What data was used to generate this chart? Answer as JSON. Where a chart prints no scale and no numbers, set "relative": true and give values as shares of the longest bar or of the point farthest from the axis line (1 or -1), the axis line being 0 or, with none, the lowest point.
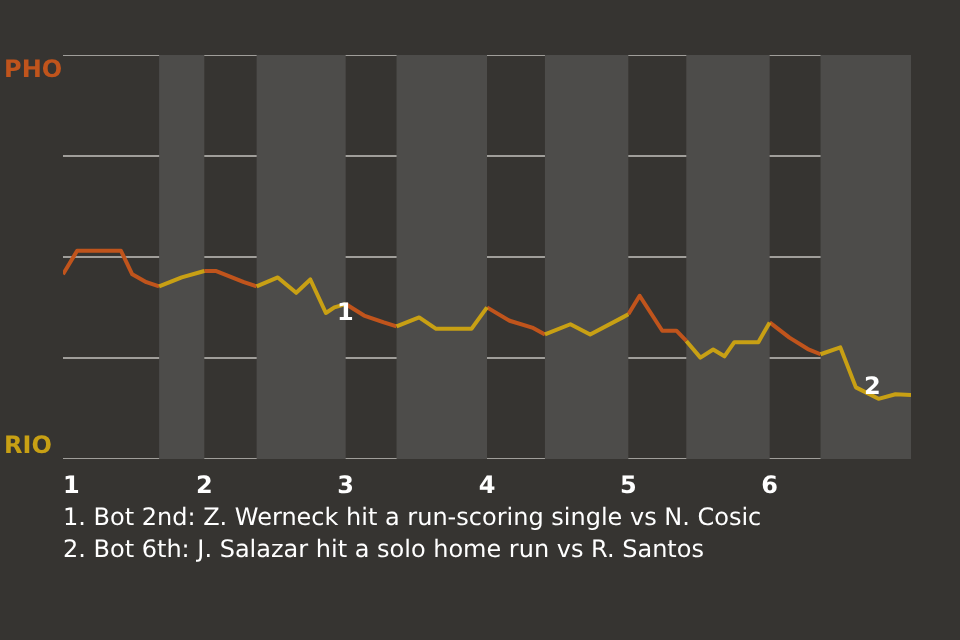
{
  "chart_data": {
    "type": "line",
    "relative": true,
    "xlim": [
      1,
      7
    ],
    "xticks": [
      1,
      2,
      3,
      4,
      5,
      6
    ],
    "marker": "none",
    "line_style": "solid",
    "ref_lines": [
      {
        "axis": "y",
        "value": 0,
        "color": "#a09e9a"
      },
      {
        "axis": "y",
        "value": 0.485,
        "color": "#a09e9a"
      },
      {
        "axis": "y",
        "value": 0.97,
        "color": "#a09e9a"
      },
      {
        "axis": "y",
        "value": 1.455,
        "color": "#a09e9a"
      },
      {
        "axis": "y",
        "value": 1.94,
        "color": "#a09e9a"
      }
    ],
    "series": [
      {
        "color": "#c0541c",
        "x": [
          1,
          1.1,
          1.41,
          1.49,
          1.59,
          1.68,
          null,
          2,
          2.08,
          2.28,
          2.37,
          null,
          3,
          3.13,
          3.27,
          3.36,
          null,
          4,
          4.16,
          4.32,
          4.41,
          null,
          5,
          5.08,
          5.24,
          5.34,
          5.41,
          null,
          6,
          6.14,
          6.27,
          6.36
        ],
        "values": [
          0.887,
          1,
          1,
          0.887,
          0.849,
          0.829,
          null,
          0.903,
          0.903,
          0.849,
          0.829,
          null,
          0.744,
          0.689,
          0.656,
          0.637,
          null,
          0.728,
          0.664,
          0.631,
          0.598,
          null,
          0.695,
          0.784,
          0.616,
          0.616,
          0.567,
          null,
          0.656,
          0.583,
          0.528,
          0.503
        ]
      },
      {
        "color": "#c8a014",
        "x": [
          1.68,
          1.84,
          2,
          null,
          2.37,
          2.52,
          2.65,
          2.75,
          2.86,
          2.92,
          3,
          null,
          3.36,
          3.52,
          3.64,
          3.89,
          4,
          null,
          4.41,
          4.59,
          4.73,
          4.96,
          5,
          null,
          5.41,
          5.51,
          5.6,
          5.68,
          5.75,
          5.92,
          6,
          null,
          6.36,
          6.5,
          6.61,
          6.77,
          6.89,
          7
        ],
        "values": [
          0.829,
          0.872,
          0.903,
          null,
          0.829,
          0.872,
          0.798,
          0.862,
          0.701,
          0.728,
          0.744,
          null,
          0.637,
          0.68,
          0.625,
          0.625,
          0.728,
          null,
          0.598,
          0.647,
          0.598,
          0.68,
          0.695,
          null,
          0.567,
          0.487,
          0.526,
          0.493,
          0.561,
          0.561,
          0.656,
          null,
          0.503,
          0.536,
          0.344,
          0.289,
          0.311,
          0.307
        ]
      }
    ],
    "bands": [
      {
        "axis": "x",
        "from": 1.68,
        "to": 2,
        "color": "#4d4c4a"
      },
      {
        "axis": "x",
        "from": 2.37,
        "to": 3,
        "color": "#4d4c4a"
      },
      {
        "axis": "x",
        "from": 3.36,
        "to": 4,
        "color": "#4d4c4a"
      },
      {
        "axis": "x",
        "from": 4.41,
        "to": 5,
        "color": "#4d4c4a"
      },
      {
        "axis": "x",
        "from": 5.41,
        "to": 6,
        "color": "#4d4c4a"
      },
      {
        "axis": "x",
        "from": 6.36,
        "to": 7,
        "color": "#4d4c4a"
      }
    ],
    "annotations": [
      "PHO",
      "RIO",
      {
        "text": "1",
        "x": 2.91,
        "y": 0.711
      },
      {
        "text": "2",
        "x": 6.64,
        "y": 0.355
      },
      "1. Bot 2nd: Z. Werneck hit a run-scoring single vs N. Cosic",
      "2. Bot 6th: J. Salazar hit a solo home run vs R. Santos"
    ]
  }
}
